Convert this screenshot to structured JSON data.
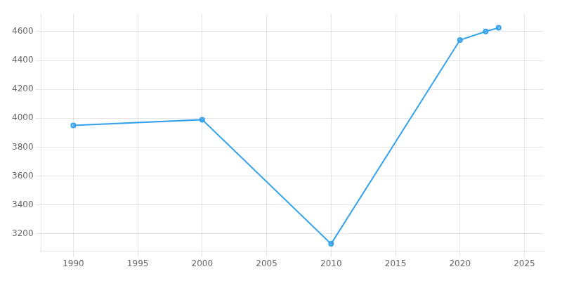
{
  "chart_data": {
    "type": "line",
    "x": [
      1990,
      2000,
      2010,
      2020,
      2022,
      2023
    ],
    "values": [
      3951,
      3990,
      3131,
      4541,
      4601,
      4626
    ],
    "marker": "circle",
    "xlim": [
      1987.5,
      2026.5
    ],
    "ylim": [
      3080,
      4720
    ],
    "xticks": [
      1990,
      1995,
      2000,
      2005,
      2010,
      2015,
      2020,
      2025
    ],
    "yticks": [
      3200,
      3400,
      3600,
      3800,
      4000,
      4200,
      4400,
      4600
    ],
    "grid": true
  }
}
